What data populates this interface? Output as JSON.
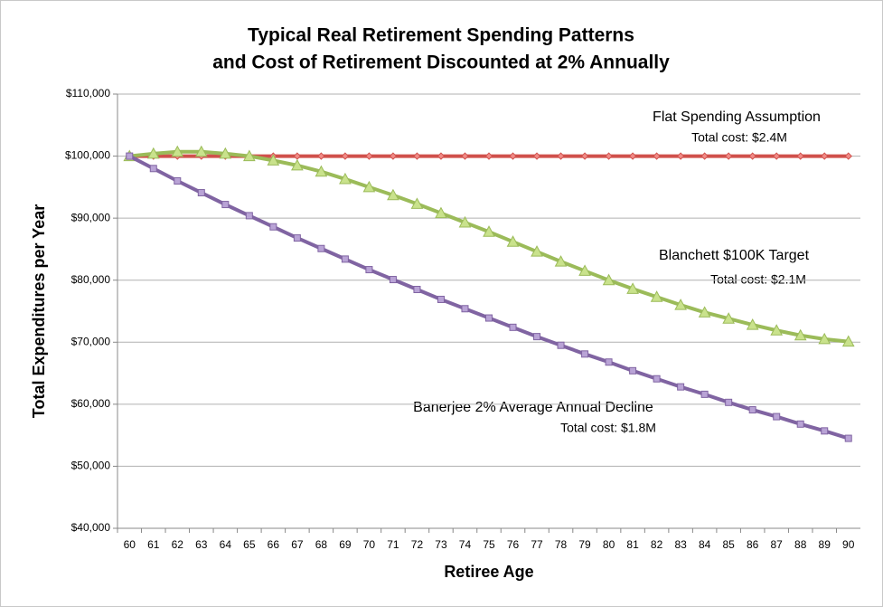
{
  "chart_data": {
    "type": "line",
    "title_lines": [
      "Typical Real Retirement Spending Patterns",
      "and Cost of Retirement Discounted at 2% Annually"
    ],
    "x_label": "Retiree Age",
    "y_label": "Total Expenditures per Year",
    "categories": [
      "60",
      "61",
      "62",
      "63",
      "64",
      "65",
      "66",
      "67",
      "68",
      "69",
      "70",
      "71",
      "72",
      "73",
      "74",
      "75",
      "76",
      "77",
      "78",
      "79",
      "80",
      "81",
      "82",
      "83",
      "84",
      "85",
      "86",
      "87",
      "88",
      "89",
      "90"
    ],
    "ylim": [
      40000,
      110000
    ],
    "yticks": [
      {
        "value": 40000,
        "label": "$40,000"
      },
      {
        "value": 50000,
        "label": "$50,000"
      },
      {
        "value": 60000,
        "label": "$60,000"
      },
      {
        "value": 70000,
        "label": "$70,000"
      },
      {
        "value": 80000,
        "label": "$80,000"
      },
      {
        "value": 90000,
        "label": "$90,000"
      },
      {
        "value": 100000,
        "label": "$100,000"
      },
      {
        "value": 110000,
        "label": "$110,000"
      }
    ],
    "grid": true,
    "series": [
      {
        "name": "Flat Spending Assumption",
        "color": "#d0504b",
        "marker_fill": "#f08a86",
        "marker": "diamond",
        "values": [
          100000,
          100000,
          100000,
          100000,
          100000,
          100000,
          100000,
          100000,
          100000,
          100000,
          100000,
          100000,
          100000,
          100000,
          100000,
          100000,
          100000,
          100000,
          100000,
          100000,
          100000,
          100000,
          100000,
          100000,
          100000,
          100000,
          100000,
          100000,
          100000,
          100000,
          100000
        ]
      },
      {
        "name": "Blanchett $100K Target",
        "color": "#9bbb59",
        "marker_fill": "#c9e28c",
        "marker": "triangle",
        "values": [
          100000,
          100400,
          100700,
          100700,
          100400,
          100000,
          99300,
          98500,
          97500,
          96300,
          95000,
          93700,
          92300,
          90800,
          89300,
          87800,
          86200,
          84600,
          83000,
          81500,
          80000,
          78600,
          77300,
          76000,
          74800,
          73800,
          72800,
          71900,
          71100,
          70500,
          70100
        ]
      },
      {
        "name": "Banerjee 2% Average Annual Decline",
        "color": "#8064a2",
        "marker_fill": "#b9a3d6",
        "marker": "square",
        "values": [
          100000,
          98000,
          96000,
          94100,
          92200,
          90400,
          88600,
          86800,
          85100,
          83400,
          81700,
          80100,
          78500,
          76900,
          75400,
          73900,
          72400,
          70900,
          69500,
          68100,
          66800,
          65400,
          64100,
          62800,
          61600,
          60300,
          59100,
          58000,
          56800,
          55700,
          54500
        ]
      }
    ],
    "annotations": [
      "Total cost: $2.4M",
      "Total cost: $2.1M",
      "Total cost: $1.8M"
    ]
  }
}
